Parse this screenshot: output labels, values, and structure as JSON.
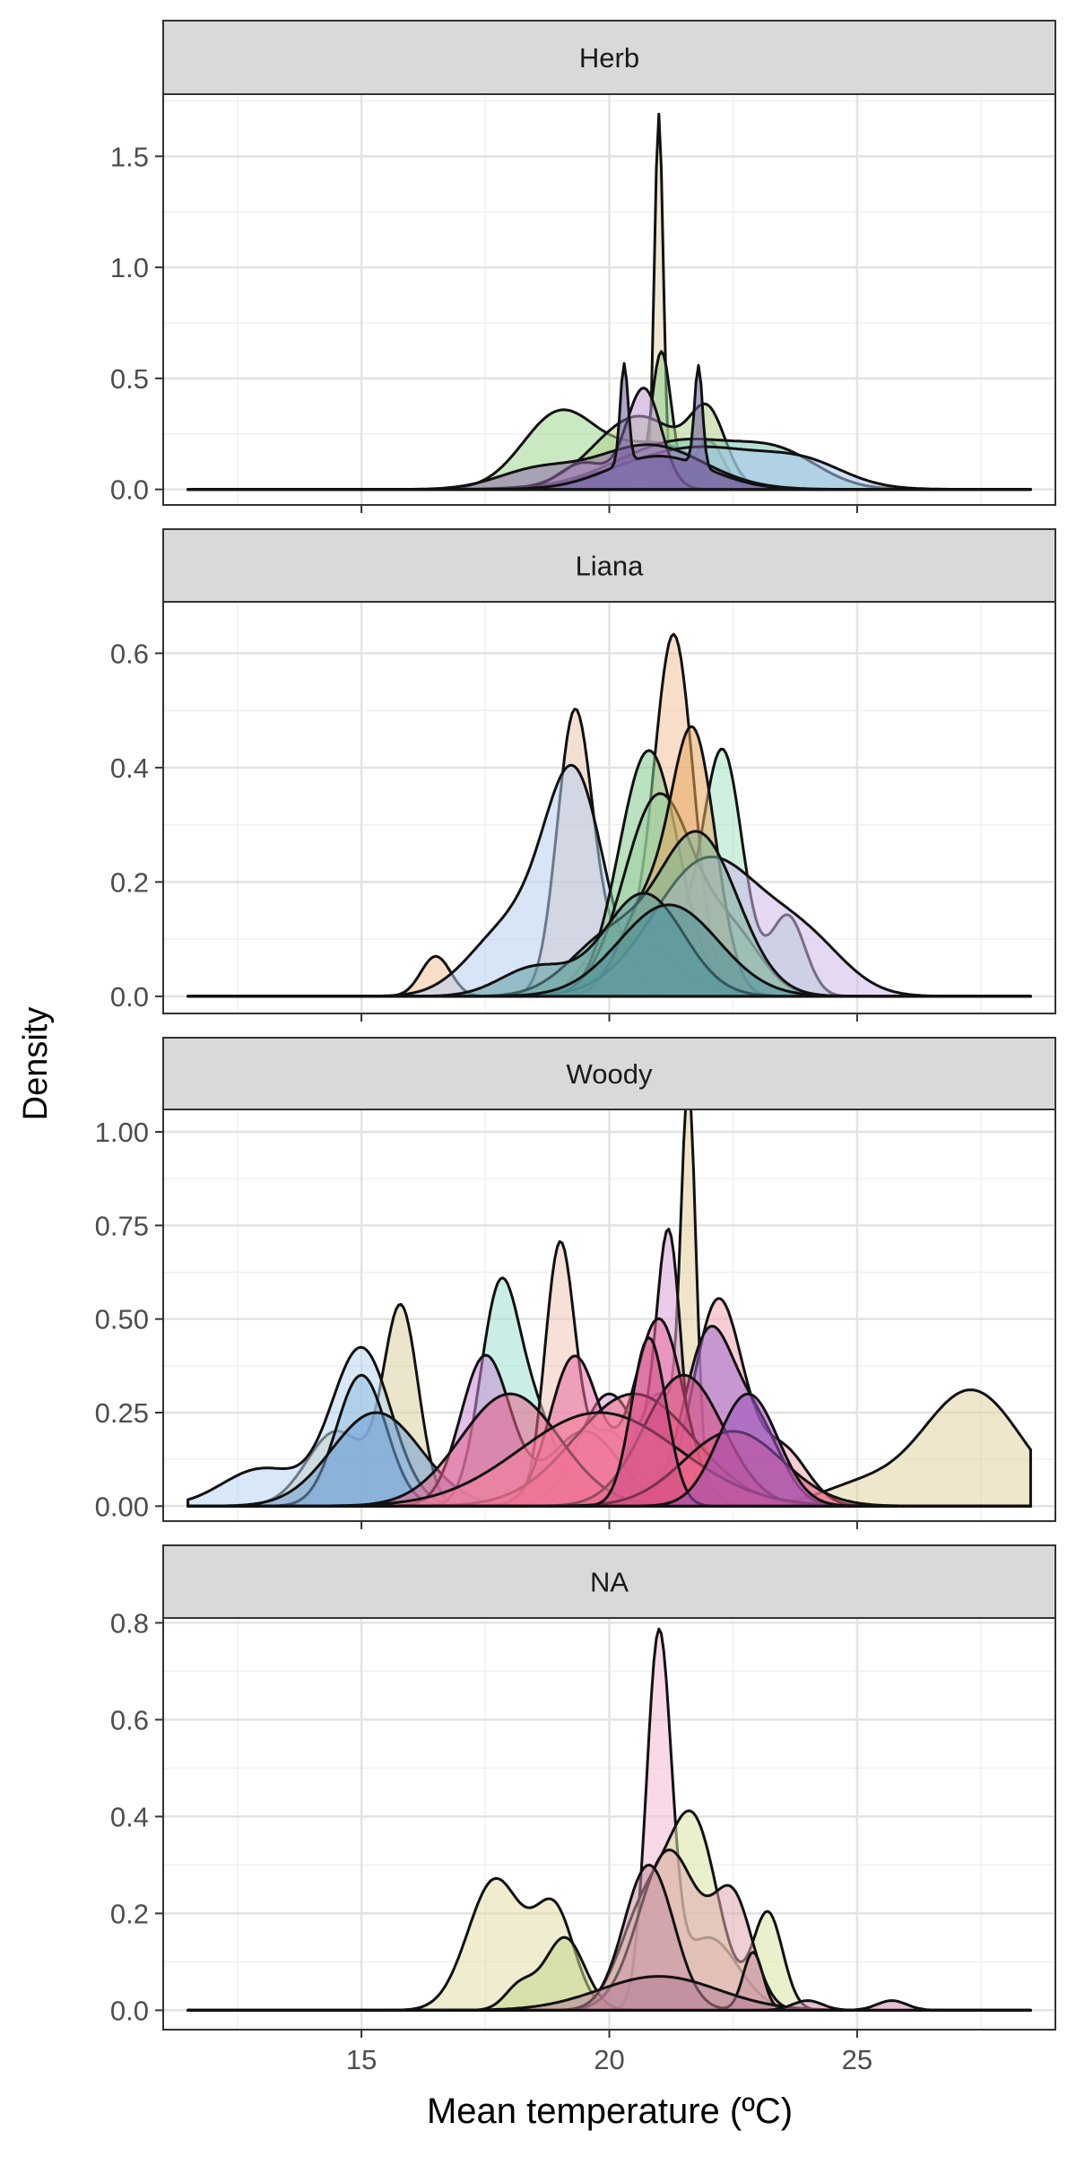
{
  "chart_data": {
    "type": "area",
    "xlabel": "Mean temperature (ºC)",
    "ylabel": "Density",
    "xlim": [
      11,
      29
    ],
    "x_ticks": [
      "15",
      "20",
      "25"
    ],
    "grid": true,
    "legend": "none",
    "panels": [
      {
        "strip": "Herb",
        "ylim": [
          -0.07,
          1.78
        ],
        "y_ticks": [
          "0.0",
          "0.5",
          "1.0",
          "1.5"
        ],
        "series": [
          {
            "color": "#e8d3b0",
            "peaks": [
              [
                21.0,
                1.69,
                0.09
              ]
            ]
          },
          {
            "color": "#8fd08a",
            "peaks": [
              [
                21.05,
                0.62,
                0.2
              ],
              [
                22.0,
                0.22,
                0.3
              ]
            ]
          },
          {
            "color": "#9ed58e",
            "peaks": [
              [
                19.0,
                0.34,
                0.75
              ],
              [
                21.0,
                0.2,
                0.9
              ]
            ]
          },
          {
            "color": "#b3d18b",
            "peaks": [
              [
                20.6,
                0.33,
                0.9
              ],
              [
                22.0,
                0.28,
                0.35
              ]
            ]
          },
          {
            "color": "#7ec9b4",
            "peaks": [
              [
                21.5,
                0.22,
                1.3
              ],
              [
                23.5,
                0.12,
                0.8
              ]
            ]
          },
          {
            "color": "#a9c6f0",
            "peaks": [
              [
                21.8,
                0.19,
                1.5
              ],
              [
                24.0,
                0.08,
                0.8
              ]
            ]
          },
          {
            "color": "#c39ad6",
            "peaks": [
              [
                20.7,
                0.45,
                0.35
              ],
              [
                19.5,
                0.12,
                0.5
              ]
            ]
          },
          {
            "color": "#8d6aa8",
            "peaks": [
              [
                20.8,
                0.2,
                1.1
              ],
              [
                18.5,
                0.08,
                0.8
              ]
            ]
          },
          {
            "color": "#6d5a9c",
            "peaks": [
              [
                20.3,
                0.45,
                0.08
              ],
              [
                21.8,
                0.45,
                0.08
              ],
              [
                21.0,
                0.15,
                1.0
              ]
            ]
          }
        ]
      },
      {
        "strip": "Liana",
        "ylim": [
          -0.03,
          0.69
        ],
        "y_ticks": [
          "0.0",
          "0.2",
          "0.4",
          "0.6"
        ],
        "series": [
          {
            "color": "#f2c29a",
            "peaks": [
              [
                21.3,
                0.63,
                0.4
              ],
              [
                16.5,
                0.07,
                0.3
              ],
              [
                20.0,
                0.1,
                0.5
              ]
            ]
          },
          {
            "color": "#e9c4b0",
            "peaks": [
              [
                19.3,
                0.47,
                0.35
              ],
              [
                20.5,
                0.1,
                0.8
              ]
            ]
          },
          {
            "color": "#b6cfee",
            "peaks": [
              [
                19.3,
                0.37,
                0.6
              ],
              [
                18.0,
                0.12,
                0.8
              ]
            ]
          },
          {
            "color": "#a8e3c5",
            "peaks": [
              [
                22.3,
                0.4,
                0.4
              ],
              [
                23.6,
                0.14,
                0.35
              ],
              [
                21.0,
                0.12,
                0.8
              ]
            ]
          },
          {
            "color": "#82c98c",
            "peaks": [
              [
                20.8,
                0.43,
                0.6
              ]
            ]
          },
          {
            "color": "#9fd0a0",
            "peaks": [
              [
                21.0,
                0.35,
                0.7
              ],
              [
                22.5,
                0.1,
                0.6
              ]
            ]
          },
          {
            "color": "#e7a85f",
            "peaks": [
              [
                21.7,
                0.45,
                0.45
              ],
              [
                20.7,
                0.15,
                0.5
              ]
            ]
          },
          {
            "color": "#cdb8ea",
            "peaks": [
              [
                22.0,
                0.24,
                1.1
              ],
              [
                24.0,
                0.08,
                0.8
              ]
            ]
          },
          {
            "color": "#7fb79a",
            "peaks": [
              [
                21.8,
                0.28,
                0.8
              ],
              [
                20.0,
                0.1,
                0.8
              ]
            ]
          },
          {
            "color": "#5e9da0",
            "peaks": [
              [
                20.7,
                0.18,
                0.8
              ],
              [
                18.5,
                0.05,
                0.7
              ]
            ]
          },
          {
            "color": "#4f8f99",
            "peaks": [
              [
                21.2,
                0.16,
                1.0
              ]
            ]
          }
        ]
      },
      {
        "strip": "Woody",
        "ylim": [
          -0.04,
          1.06
        ],
        "y_ticks": [
          "0.00",
          "0.25",
          "0.50",
          "0.75",
          "1.00"
        ],
        "series": [
          {
            "color": "#e0d3a0",
            "peaks": [
              [
                27.3,
                0.31,
                1.0
              ],
              [
                25.0,
                0.05,
                0.8
              ]
            ]
          },
          {
            "color": "#d8cfa0",
            "peaks": [
              [
                15.8,
                0.52,
                0.35
              ],
              [
                14.5,
                0.2,
                0.6
              ]
            ]
          },
          {
            "color": "#b9d6f0",
            "peaks": [
              [
                15.0,
                0.42,
                0.6
              ],
              [
                13.0,
                0.1,
                0.8
              ]
            ]
          },
          {
            "color": "#8fbde0",
            "peaks": [
              [
                15.0,
                0.35,
                0.5
              ]
            ]
          },
          {
            "color": "#6f9fd1",
            "peaks": [
              [
                15.3,
                0.25,
                0.9
              ]
            ]
          },
          {
            "color": "#9fe0d0",
            "peaks": [
              [
                17.8,
                0.58,
                0.4
              ],
              [
                18.6,
                0.2,
                0.4
              ]
            ]
          },
          {
            "color": "#f0c7b8",
            "peaks": [
              [
                19.0,
                0.68,
                0.3
              ],
              [
                20.0,
                0.2,
                0.5
              ]
            ]
          },
          {
            "color": "#e4cfa0",
            "peaks": [
              [
                21.6,
                0.98,
                0.15
              ],
              [
                21.0,
                0.3,
                0.5
              ]
            ]
          },
          {
            "color": "#d9a0d6",
            "peaks": [
              [
                21.2,
                0.7,
                0.25
              ],
              [
                20.0,
                0.3,
                0.6
              ]
            ]
          },
          {
            "color": "#f2a5b0",
            "peaks": [
              [
                22.2,
                0.55,
                0.5
              ],
              [
                23.5,
                0.15,
                0.5
              ]
            ]
          },
          {
            "color": "#c98ad6",
            "peaks": [
              [
                17.5,
                0.4,
                0.5
              ],
              [
                19.5,
                0.2,
                0.7
              ]
            ]
          },
          {
            "color": "#a06ad0",
            "peaks": [
              [
                22.0,
                0.45,
                0.5
              ],
              [
                23.0,
                0.2,
                0.5
              ]
            ]
          },
          {
            "color": "#e76aa0",
            "peaks": [
              [
                21.0,
                0.5,
                0.5
              ],
              [
                19.3,
                0.4,
                0.5
              ]
            ]
          },
          {
            "color": "#f07090",
            "peaks": [
              [
                20.5,
                0.3,
                1.2
              ]
            ]
          },
          {
            "color": "#e8608a",
            "peaks": [
              [
                18.0,
                0.3,
                1.0
              ]
            ]
          },
          {
            "color": "#d85080",
            "peaks": [
              [
                21.5,
                0.35,
                0.8
              ]
            ]
          },
          {
            "color": "#f5809a",
            "peaks": [
              [
                19.8,
                0.25,
                1.6
              ]
            ]
          },
          {
            "color": "#e85a7a",
            "peaks": [
              [
                22.5,
                0.2,
                1.0
              ]
            ]
          },
          {
            "color": "#cf4d86",
            "peaks": [
              [
                20.8,
                0.45,
                0.35
              ]
            ]
          },
          {
            "color": "#9a50b8",
            "peaks": [
              [
                22.8,
                0.3,
                0.6
              ]
            ]
          }
        ]
      },
      {
        "strip": "NA",
        "ylim": [
          -0.04,
          0.81
        ],
        "y_ticks": [
          "0.0",
          "0.2",
          "0.4",
          "0.6",
          "0.8"
        ],
        "series": [
          {
            "color": "#e2dda8",
            "peaks": [
              [
                17.7,
                0.27,
                0.55
              ],
              [
                18.9,
                0.2,
                0.4
              ]
            ]
          },
          {
            "color": "#f4b8d6",
            "peaks": [
              [
                21.0,
                0.75,
                0.25
              ],
              [
                22.0,
                0.15,
                0.6
              ]
            ]
          },
          {
            "color": "#d8e3a0",
            "peaks": [
              [
                21.7,
                0.38,
                0.5
              ],
              [
                20.7,
                0.2,
                0.5
              ],
              [
                23.2,
                0.2,
                0.3
              ]
            ]
          },
          {
            "color": "#c7d98c",
            "peaks": [
              [
                19.1,
                0.15,
                0.4
              ],
              [
                18.2,
                0.05,
                0.3
              ]
            ]
          },
          {
            "color": "#e0a8b0",
            "peaks": [
              [
                21.2,
                0.33,
                0.6
              ],
              [
                22.5,
                0.22,
                0.4
              ]
            ]
          },
          {
            "color": "#c790a0",
            "peaks": [
              [
                20.8,
                0.3,
                0.5
              ],
              [
                22.9,
                0.12,
                0.2
              ]
            ]
          },
          {
            "color": "#b78096",
            "peaks": [
              [
                21.0,
                0.07,
                1.2
              ]
            ]
          },
          {
            "color": "#d18ab0",
            "peaks": [
              [
                25.7,
                0.02,
                0.3
              ],
              [
                24.0,
                0.02,
                0.3
              ]
            ]
          }
        ]
      }
    ]
  }
}
